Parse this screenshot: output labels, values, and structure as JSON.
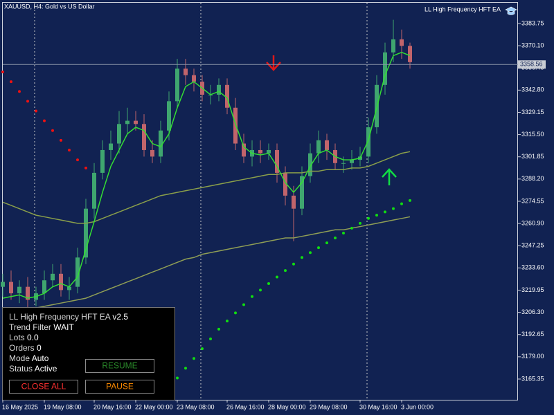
{
  "chart_data": {
    "type": "candlestick",
    "title": "XAUUSD, H4:  Gold vs US Dollar",
    "indicator": "LL High Frequency HFT EA",
    "categories": [
      "16 May 2025",
      null,
      null,
      null,
      null,
      "19 May 08:00",
      null,
      null,
      null,
      null,
      null,
      "20 May 16:00",
      null,
      null,
      null,
      null,
      "22 May 00:00",
      null,
      null,
      null,
      null,
      "23 May 08:00",
      null,
      null,
      null,
      null,
      null,
      "26 May 16:00",
      null,
      null,
      null,
      null,
      "28 May 00:00",
      null,
      null,
      null,
      null,
      "29 May 08:00",
      null,
      null,
      null,
      null,
      null,
      "30 May 16:00",
      null,
      null,
      null,
      null,
      "3 Jun 00:00",
      null
    ],
    "open": [
      3222,
      3225,
      3218,
      3222,
      3214,
      3218,
      3226,
      3230,
      3220,
      3222,
      3240,
      3270,
      3292,
      3306,
      3310,
      3322,
      3324,
      3322,
      3306,
      3302,
      3318,
      3336,
      3356,
      3352,
      3348,
      3340,
      3340,
      3346,
      3332,
      3310,
      3302,
      3306,
      3304,
      3306,
      3292,
      3278,
      3270,
      3290,
      3304,
      3312,
      3306,
      3298,
      3298,
      3300,
      3302,
      3320,
      3346,
      3366,
      3374,
      3370
    ],
    "high": [
      3230,
      3232,
      3226,
      3228,
      3222,
      3232,
      3236,
      3236,
      3228,
      3246,
      3276,
      3298,
      3312,
      3318,
      3330,
      3332,
      3330,
      3328,
      3312,
      3324,
      3342,
      3362,
      3362,
      3356,
      3352,
      3346,
      3350,
      3350,
      3338,
      3316,
      3312,
      3312,
      3310,
      3310,
      3296,
      3284,
      3296,
      3310,
      3318,
      3316,
      3310,
      3302,
      3306,
      3308,
      3326,
      3352,
      3372,
      3386,
      3380,
      3372
    ],
    "low": [
      3216,
      3214,
      3212,
      3208,
      3210,
      3214,
      3222,
      3216,
      3214,
      3218,
      3236,
      3264,
      3288,
      3300,
      3304,
      3316,
      3318,
      3302,
      3298,
      3298,
      3312,
      3332,
      3346,
      3342,
      3336,
      3334,
      3336,
      3328,
      3306,
      3298,
      3296,
      3298,
      3300,
      3286,
      3272,
      3250,
      3266,
      3286,
      3298,
      3300,
      3294,
      3292,
      3294,
      3296,
      3298,
      3316,
      3340,
      3360,
      3362,
      3356
    ],
    "close": [
      3225,
      3218,
      3222,
      3214,
      3218,
      3226,
      3230,
      3220,
      3222,
      3240,
      3270,
      3292,
      3306,
      3310,
      3322,
      3324,
      3322,
      3306,
      3302,
      3318,
      3336,
      3356,
      3352,
      3348,
      3340,
      3340,
      3346,
      3332,
      3310,
      3302,
      3306,
      3304,
      3306,
      3292,
      3278,
      3270,
      3290,
      3304,
      3312,
      3306,
      3298,
      3298,
      3300,
      3302,
      3320,
      3346,
      3366,
      3374,
      3370,
      3360
    ],
    "up_color": "#3fa66f",
    "down_color": "#c1646b",
    "lines": [
      {
        "color": "#8f9e55",
        "values": [
          3205,
          3206,
          3207,
          3208,
          3209,
          3210,
          3211,
          3212,
          3213,
          3214,
          3215,
          3217,
          3219,
          3221,
          3223,
          3225,
          3227,
          3229,
          3231,
          3233,
          3235,
          3237,
          3239,
          3240,
          3242,
          3243,
          3244,
          3245,
          3246,
          3247,
          3248,
          3249,
          3250,
          3251,
          3252,
          3252,
          3253,
          3254,
          3255,
          3256,
          3257,
          3257,
          3258,
          3259,
          3260,
          3261,
          3262,
          3263,
          3264,
          3265
        ]
      },
      {
        "color": "#8a9f4a",
        "values": [
          3274,
          3272,
          3270,
          3268,
          3266,
          3265,
          3264,
          3263,
          3262,
          3261,
          3261,
          3262,
          3264,
          3266,
          3268,
          3270,
          3272,
          3274,
          3276,
          3278,
          3279,
          3280,
          3281,
          3282,
          3283,
          3284,
          3285,
          3286,
          3287,
          3288,
          3289,
          3290,
          3291,
          3291,
          3292,
          3292,
          3292,
          3293,
          3293,
          3294,
          3294,
          3294,
          3295,
          3295,
          3296,
          3298,
          3300,
          3302,
          3304,
          3305
        ]
      },
      {
        "color": "#33dd33",
        "values": [
          3215,
          3216,
          3217,
          3215,
          3216,
          3218,
          3222,
          3224,
          3222,
          3228,
          3245,
          3262,
          3280,
          3296,
          3306,
          3316,
          3320,
          3318,
          3310,
          3308,
          3316,
          3332,
          3345,
          3348,
          3344,
          3340,
          3342,
          3338,
          3322,
          3308,
          3304,
          3303,
          3304,
          3296,
          3286,
          3280,
          3286,
          3296,
          3304,
          3306,
          3302,
          3300,
          3300,
          3301,
          3312,
          3332,
          3352,
          3364,
          3366,
          3364
        ]
      }
    ],
    "dots": [
      {
        "color": "#ee1111",
        "values": [
          3354,
          3348,
          3342,
          3336,
          3330,
          3324,
          3318,
          3312,
          3306,
          3300,
          3295,
          null,
          null,
          null,
          null,
          null,
          null,
          null,
          null,
          null,
          null,
          null,
          null,
          null,
          null,
          null,
          null,
          null,
          null,
          null,
          null,
          null,
          null,
          null,
          null,
          null,
          null,
          null,
          null,
          null,
          null,
          null,
          null,
          null,
          null,
          null,
          null,
          null,
          null,
          null
        ]
      },
      {
        "color": "#11dd11",
        "values": [
          null,
          null,
          null,
          null,
          null,
          null,
          null,
          null,
          null,
          null,
          null,
          null,
          null,
          null,
          null,
          null,
          null,
          null,
          null,
          null,
          null,
          3166,
          3172,
          3178,
          3184,
          3190,
          3196,
          3201,
          3206,
          3211,
          3216,
          3220,
          3224,
          3228,
          3232,
          3236,
          3240,
          3243,
          3246,
          3249,
          3252,
          3255,
          3258,
          3261,
          3264,
          3266,
          3268,
          3270,
          3273,
          3275
        ]
      }
    ],
    "price_line": 3358.56,
    "ylim": [
      3152.6,
      3396.9
    ],
    "yticks": [
      3383.75,
      {
        "value": 3370.1,
        "label": "3370.10"
      },
      3356.45,
      {
        "value": 3342.8,
        "label": "3342.80"
      },
      3329.15,
      {
        "value": 3315.5,
        "label": "3315.50"
      },
      3301.85,
      {
        "value": 3288.2,
        "label": "3288.20"
      },
      3274.55,
      {
        "value": 3260.9,
        "label": "3260.90"
      },
      3247.25,
      {
        "value": 3233.6,
        "label": "3233.60"
      },
      3219.95,
      {
        "value": 3206.3,
        "label": "3206.30"
      },
      3192.65,
      {
        "value": 3179,
        "label": "3179.00"
      },
      3165.35
    ]
  },
  "panel": {
    "title": "LL High Frequency HFT EA",
    "version": "v2.5",
    "rows": [
      {
        "label": "Trend Filter",
        "value": "WAIT"
      },
      {
        "label": "Lots",
        "value": "0.0"
      },
      {
        "label": "Orders",
        "value": "0"
      },
      {
        "label": "Mode",
        "value": "Auto"
      },
      {
        "label": "Status",
        "value": "Active"
      }
    ],
    "buttons": {
      "resume": "RESUME",
      "close_all": "CLOSE ALL",
      "pause": "PAUSE"
    }
  }
}
